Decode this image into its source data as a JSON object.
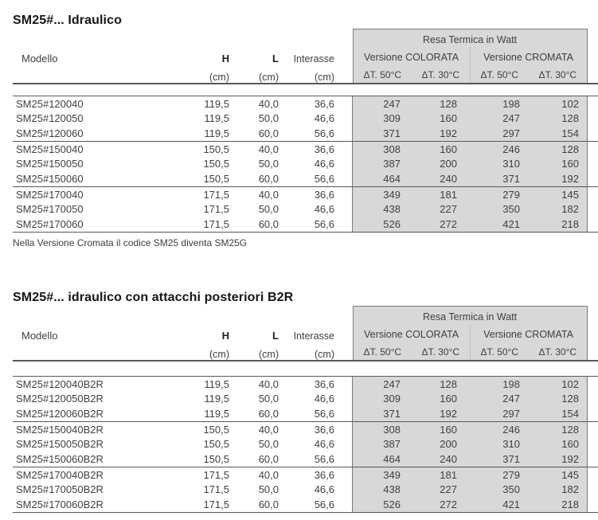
{
  "colors": {
    "panel_gray": "#d8d8d8",
    "panel_border": "#7a7a7a",
    "rule": "#585858",
    "title_text": "#161616",
    "body_text": "#3f3f3f"
  },
  "header": {
    "modello": "Modello",
    "h": "H",
    "l": "L",
    "interasse": "Interasse",
    "cm": "(cm)",
    "resa": "Resa Termica in Watt",
    "colorata": "Versione COLORATA",
    "cromata": "Versione CROMATA",
    "dt50": "ΔT. 50°C",
    "dt30": "ΔT. 30°C"
  },
  "sections": [
    {
      "title": "SM25#... Idraulico",
      "note": "Nella Versione Cromata il codice SM25 diventa SM25G",
      "groups": [
        [
          {
            "model": "SM25#120040",
            "h": "119,5",
            "l": "40,0",
            "interasse": "36,6",
            "watts": [
              "247",
              "128",
              "198",
              "102"
            ]
          },
          {
            "model": "SM25#120050",
            "h": "119,5",
            "l": "50,0",
            "interasse": "46,6",
            "watts": [
              "309",
              "160",
              "247",
              "128"
            ]
          },
          {
            "model": "SM25#120060",
            "h": "119,5",
            "l": "60,0",
            "interasse": "56,6",
            "watts": [
              "371",
              "192",
              "297",
              "154"
            ]
          }
        ],
        [
          {
            "model": "SM25#150040",
            "h": "150,5",
            "l": "40,0",
            "interasse": "36,6",
            "watts": [
              "308",
              "160",
              "246",
              "128"
            ]
          },
          {
            "model": "SM25#150050",
            "h": "150,5",
            "l": "50,0",
            "interasse": "46,6",
            "watts": [
              "387",
              "200",
              "310",
              "160"
            ]
          },
          {
            "model": "SM25#150060",
            "h": "150,5",
            "l": "60,0",
            "interasse": "56,6",
            "watts": [
              "464",
              "240",
              "371",
              "192"
            ]
          }
        ],
        [
          {
            "model": "SM25#170040",
            "h": "171,5",
            "l": "40,0",
            "interasse": "36,6",
            "watts": [
              "349",
              "181",
              "279",
              "145"
            ]
          },
          {
            "model": "SM25#170050",
            "h": "171,5",
            "l": "50,0",
            "interasse": "46,6",
            "watts": [
              "438",
              "227",
              "350",
              "182"
            ]
          },
          {
            "model": "SM25#170060",
            "h": "171,5",
            "l": "60,0",
            "interasse": "56,6",
            "watts": [
              "526",
              "272",
              "421",
              "218"
            ]
          }
        ]
      ]
    },
    {
      "title": "SM25#... idraulico con attacchi posteriori B2R",
      "note": "",
      "groups": [
        [
          {
            "model": "SM25#120040B2R",
            "h": "119,5",
            "l": "40,0",
            "interasse": "36,6",
            "watts": [
              "247",
              "128",
              "198",
              "102"
            ]
          },
          {
            "model": "SM25#120050B2R",
            "h": "119,5",
            "l": "50,0",
            "interasse": "46,6",
            "watts": [
              "309",
              "160",
              "247",
              "128"
            ]
          },
          {
            "model": "SM25#120060B2R",
            "h": "119,5",
            "l": "60,0",
            "interasse": "56,6",
            "watts": [
              "371",
              "192",
              "297",
              "154"
            ]
          }
        ],
        [
          {
            "model": "SM25#150040B2R",
            "h": "150,5",
            "l": "40,0",
            "interasse": "36,6",
            "watts": [
              "308",
              "160",
              "246",
              "128"
            ]
          },
          {
            "model": "SM25#150050B2R",
            "h": "150,5",
            "l": "50,0",
            "interasse": "46,6",
            "watts": [
              "387",
              "200",
              "310",
              "160"
            ]
          },
          {
            "model": "SM25#150060B2R",
            "h": "150,5",
            "l": "60,0",
            "interasse": "56,6",
            "watts": [
              "464",
              "240",
              "371",
              "192"
            ]
          }
        ],
        [
          {
            "model": "SM25#170040B2R",
            "h": "171,5",
            "l": "40,0",
            "interasse": "36,6",
            "watts": [
              "349",
              "181",
              "279",
              "145"
            ]
          },
          {
            "model": "SM25#170050B2R",
            "h": "171,5",
            "l": "50,0",
            "interasse": "46,6",
            "watts": [
              "438",
              "227",
              "350",
              "182"
            ]
          },
          {
            "model": "SM25#170060B2R",
            "h": "171,5",
            "l": "60,0",
            "interasse": "56,6",
            "watts": [
              "526",
              "272",
              "421",
              "218"
            ]
          }
        ]
      ]
    }
  ]
}
